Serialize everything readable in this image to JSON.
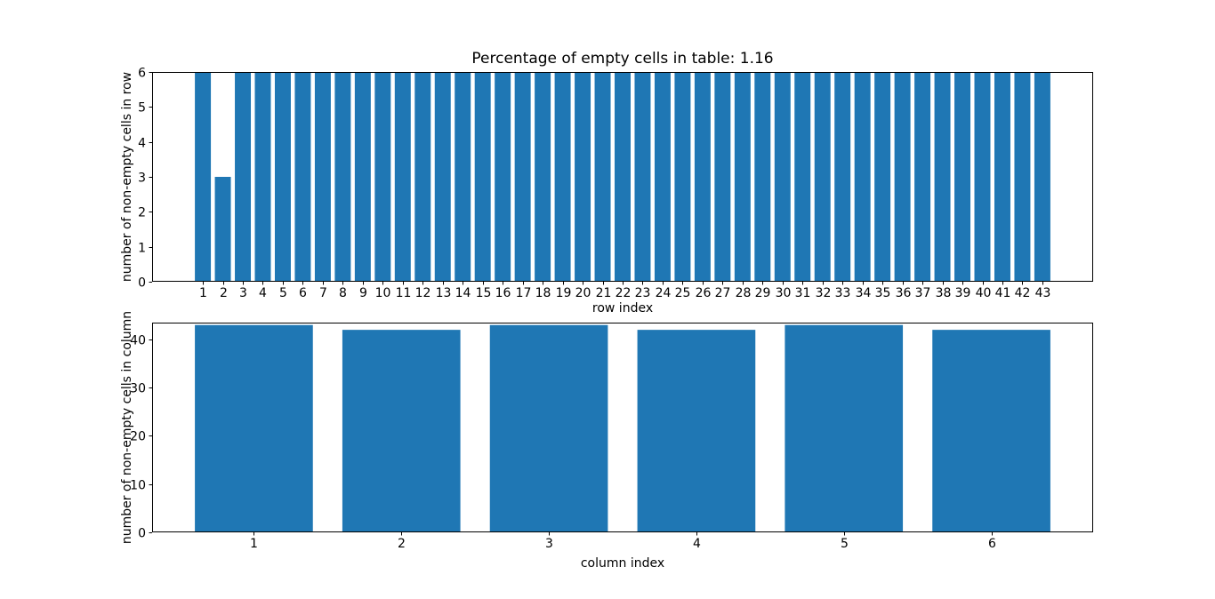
{
  "figure": {
    "background_color": "#ffffff",
    "bar_color": "#1f77b4",
    "text_color": "#000000"
  },
  "chart_data": [
    {
      "type": "bar",
      "title": "Percentage of empty cells in table: 1.16",
      "xlabel": "row index",
      "ylabel": "number of non-empty cells in row",
      "categories": [
        1,
        2,
        3,
        4,
        5,
        6,
        7,
        8,
        9,
        10,
        11,
        12,
        13,
        14,
        15,
        16,
        17,
        18,
        19,
        20,
        21,
        22,
        23,
        24,
        25,
        26,
        27,
        28,
        29,
        30,
        31,
        32,
        33,
        34,
        35,
        36,
        37,
        38,
        39,
        40,
        41,
        42,
        43
      ],
      "values": [
        6,
        3,
        6,
        6,
        6,
        6,
        6,
        6,
        6,
        6,
        6,
        6,
        6,
        6,
        6,
        6,
        6,
        6,
        6,
        6,
        6,
        6,
        6,
        6,
        6,
        6,
        6,
        6,
        6,
        6,
        6,
        6,
        6,
        6,
        6,
        6,
        6,
        6,
        6,
        6,
        6,
        6,
        6
      ],
      "xlim": [
        -1.54,
        45.54
      ],
      "ylim": [
        0,
        6
      ],
      "yticks": [
        0,
        1,
        2,
        3,
        4,
        5,
        6
      ],
      "bar_width": 0.8,
      "bar_color": "#1f77b4",
      "grid": false,
      "legend": null
    },
    {
      "type": "bar",
      "title": "",
      "xlabel": "column index",
      "ylabel": "number of non-empty cells in column",
      "categories": [
        1,
        2,
        3,
        4,
        5,
        6
      ],
      "values": [
        43,
        42,
        43,
        42,
        43,
        42
      ],
      "xlim": [
        0.31,
        6.69
      ],
      "ylim": [
        0,
        43.5
      ],
      "yticks": [
        0,
        10,
        20,
        30,
        40
      ],
      "bar_width": 0.8,
      "bar_color": "#1f77b4",
      "grid": false,
      "legend": null
    }
  ]
}
